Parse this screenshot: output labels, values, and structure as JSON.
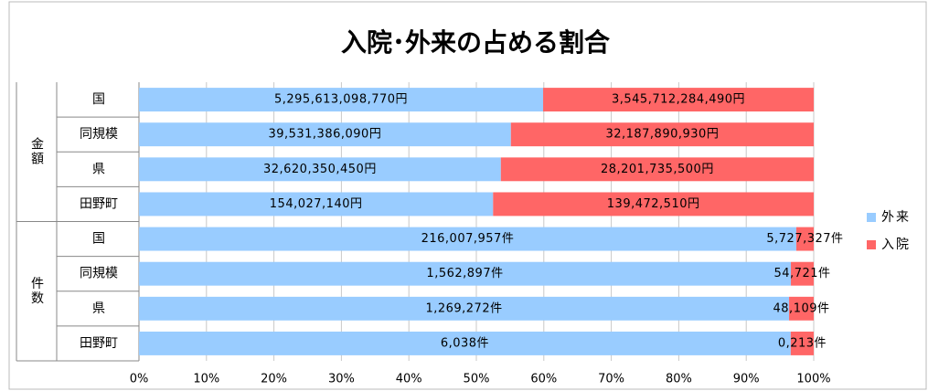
{
  "chart_data": {
    "type": "bar",
    "orientation": "horizontal",
    "stacking": "percent",
    "title": "入院･外来の占める割合",
    "category_groups": [
      {
        "name": "金額",
        "categories": [
          "国",
          "同規模",
          "県",
          "田野町"
        ]
      },
      {
        "name": "件数",
        "categories": [
          "国",
          "同規模",
          "県",
          "田野町"
        ]
      }
    ],
    "series": [
      {
        "name": "外来",
        "color": "#99ccff",
        "values": [
          5295613098770,
          39531386090,
          32620350450,
          154027140,
          216007957,
          1562897,
          1269272,
          6038
        ],
        "value_labels": [
          "5,295,613,098,770円",
          "39,531,386,090円",
          "32,620,350,450円",
          "154,027,140円",
          "216,007,957件",
          "1,562,897件",
          "1,269,272件",
          "6,038件"
        ]
      },
      {
        "name": "入院",
        "color": "#ff6666",
        "values": [
          3545712284490,
          32187890930,
          28201735500,
          139472510,
          5727327,
          54721,
          48109,
          213
        ],
        "value_labels": [
          "3,545,712,284,490円",
          "32,187,890,930円",
          "28,201,735,500円",
          "139,472,510円",
          "5,727,327件",
          "54,721件",
          "48,109件",
          "0,213件"
        ]
      }
    ],
    "xlim": [
      0,
      100
    ],
    "xticks": [
      {
        "value": 0,
        "label": "0%"
      },
      {
        "value": 10,
        "label": "10%"
      },
      {
        "value": 20,
        "label": "20%"
      },
      {
        "value": 30,
        "label": "30%"
      },
      {
        "value": 40,
        "label": "40%"
      },
      {
        "value": 50,
        "label": "50%"
      },
      {
        "value": 60,
        "label": "60%"
      },
      {
        "value": 70,
        "label": "70%"
      },
      {
        "value": 80,
        "label": "80%"
      },
      {
        "value": 90,
        "label": "90%"
      },
      {
        "value": 100,
        "label": "100%"
      }
    ],
    "grid": true,
    "legend": "right"
  }
}
